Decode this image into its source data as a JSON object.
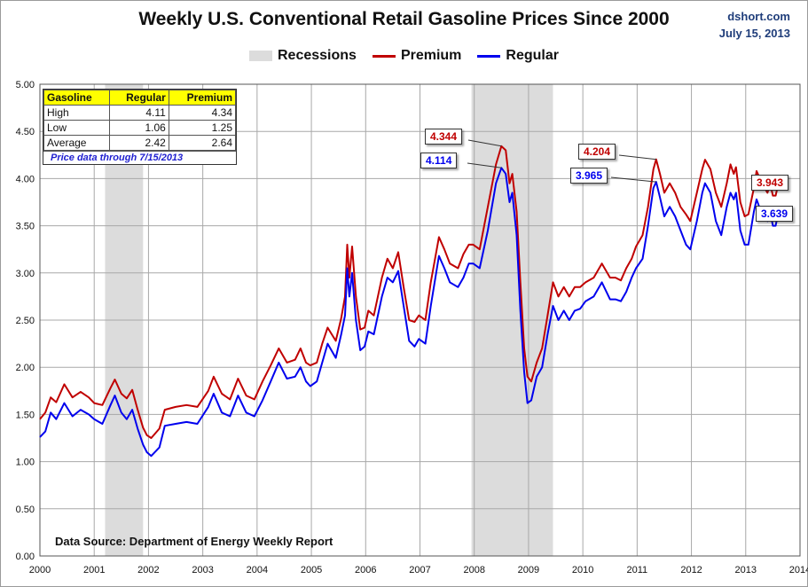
{
  "header": {
    "title": "Weekly U.S. Conventional Retail Gasoline Prices Since 2000",
    "site": "dshort.com",
    "date": "July 15, 2013"
  },
  "legend": {
    "recessions": "Recessions",
    "premium": "Premium",
    "regular": "Regular"
  },
  "colors": {
    "premium": "#c00000",
    "regular": "#0000ee",
    "recession": "#dcdcdc"
  },
  "stats_table": {
    "headers": [
      "Gasoline",
      "Regular",
      "Premium"
    ],
    "rows": [
      [
        "High",
        "4.11",
        "4.34"
      ],
      [
        "Low",
        "1.06",
        "1.25"
      ],
      [
        "Average",
        "2.42",
        "2.64"
      ]
    ],
    "note": "Price data through 7/15/2013"
  },
  "data_source": "Data Source: Department of Energy Weekly Report",
  "callouts": {
    "premium_peak_2008": "4.344",
    "regular_peak_2008": "4.114",
    "premium_peak_2011": "4.204",
    "regular_peak_2011": "3.965",
    "premium_latest": "3.943",
    "regular_latest": "3.639"
  },
  "chart_data": {
    "type": "line",
    "xlabel": "",
    "ylabel": "",
    "xlim": [
      2000,
      2014
    ],
    "ylim": [
      0,
      5
    ],
    "y_ticks": [
      "0.00",
      "0.50",
      "1.00",
      "1.50",
      "2.00",
      "2.50",
      "3.00",
      "3.50",
      "4.00",
      "4.50",
      "5.00"
    ],
    "x_ticks": [
      "2000",
      "2001",
      "2002",
      "2003",
      "2004",
      "2005",
      "2006",
      "2007",
      "2008",
      "2009",
      "2010",
      "2011",
      "2012",
      "2013",
      "2014"
    ],
    "grid": true,
    "recessions": [
      [
        2001.2,
        2001.9
      ],
      [
        2007.95,
        2009.45
      ]
    ],
    "series": [
      {
        "name": "Premium",
        "color": "#c00000",
        "points": [
          [
            2000.0,
            1.45
          ],
          [
            2000.1,
            1.52
          ],
          [
            2000.2,
            1.68
          ],
          [
            2000.3,
            1.63
          ],
          [
            2000.45,
            1.82
          ],
          [
            2000.6,
            1.68
          ],
          [
            2000.75,
            1.74
          ],
          [
            2000.9,
            1.68
          ],
          [
            2001.0,
            1.62
          ],
          [
            2001.15,
            1.6
          ],
          [
            2001.3,
            1.78
          ],
          [
            2001.38,
            1.87
          ],
          [
            2001.5,
            1.72
          ],
          [
            2001.6,
            1.67
          ],
          [
            2001.7,
            1.76
          ],
          [
            2001.8,
            1.55
          ],
          [
            2001.9,
            1.36
          ],
          [
            2001.97,
            1.28
          ],
          [
            2002.05,
            1.25
          ],
          [
            2002.2,
            1.35
          ],
          [
            2002.3,
            1.55
          ],
          [
            2002.5,
            1.58
          ],
          [
            2002.7,
            1.6
          ],
          [
            2002.9,
            1.58
          ],
          [
            2003.1,
            1.75
          ],
          [
            2003.2,
            1.9
          ],
          [
            2003.35,
            1.72
          ],
          [
            2003.5,
            1.66
          ],
          [
            2003.65,
            1.88
          ],
          [
            2003.8,
            1.7
          ],
          [
            2003.95,
            1.66
          ],
          [
            2004.1,
            1.85
          ],
          [
            2004.25,
            2.02
          ],
          [
            2004.4,
            2.2
          ],
          [
            2004.55,
            2.05
          ],
          [
            2004.7,
            2.08
          ],
          [
            2004.8,
            2.2
          ],
          [
            2004.9,
            2.05
          ],
          [
            2004.98,
            2.02
          ],
          [
            2005.1,
            2.05
          ],
          [
            2005.2,
            2.25
          ],
          [
            2005.3,
            2.42
          ],
          [
            2005.45,
            2.28
          ],
          [
            2005.55,
            2.52
          ],
          [
            2005.62,
            2.75
          ],
          [
            2005.66,
            3.3
          ],
          [
            2005.7,
            2.95
          ],
          [
            2005.75,
            3.28
          ],
          [
            2005.82,
            2.75
          ],
          [
            2005.9,
            2.4
          ],
          [
            2005.98,
            2.42
          ],
          [
            2006.05,
            2.6
          ],
          [
            2006.15,
            2.55
          ],
          [
            2006.3,
            2.95
          ],
          [
            2006.4,
            3.15
          ],
          [
            2006.5,
            3.05
          ],
          [
            2006.6,
            3.22
          ],
          [
            2006.7,
            2.85
          ],
          [
            2006.8,
            2.5
          ],
          [
            2006.9,
            2.48
          ],
          [
            2006.98,
            2.55
          ],
          [
            2007.1,
            2.5
          ],
          [
            2007.2,
            2.9
          ],
          [
            2007.35,
            3.38
          ],
          [
            2007.45,
            3.25
          ],
          [
            2007.55,
            3.1
          ],
          [
            2007.7,
            3.05
          ],
          [
            2007.8,
            3.2
          ],
          [
            2007.9,
            3.3
          ],
          [
            2007.98,
            3.3
          ],
          [
            2008.1,
            3.25
          ],
          [
            2008.25,
            3.7
          ],
          [
            2008.4,
            4.15
          ],
          [
            2008.5,
            4.344
          ],
          [
            2008.58,
            4.3
          ],
          [
            2008.65,
            3.95
          ],
          [
            2008.7,
            4.05
          ],
          [
            2008.78,
            3.65
          ],
          [
            2008.85,
            2.9
          ],
          [
            2008.92,
            2.2
          ],
          [
            2008.98,
            1.9
          ],
          [
            2009.05,
            1.85
          ],
          [
            2009.15,
            2.05
          ],
          [
            2009.25,
            2.2
          ],
          [
            2009.35,
            2.55
          ],
          [
            2009.45,
            2.9
          ],
          [
            2009.55,
            2.75
          ],
          [
            2009.65,
            2.85
          ],
          [
            2009.75,
            2.75
          ],
          [
            2009.85,
            2.85
          ],
          [
            2009.95,
            2.85
          ],
          [
            2010.05,
            2.9
          ],
          [
            2010.2,
            2.95
          ],
          [
            2010.35,
            3.1
          ],
          [
            2010.5,
            2.95
          ],
          [
            2010.6,
            2.95
          ],
          [
            2010.7,
            2.92
          ],
          [
            2010.8,
            3.05
          ],
          [
            2010.9,
            3.15
          ],
          [
            2010.98,
            3.28
          ],
          [
            2011.1,
            3.4
          ],
          [
            2011.2,
            3.7
          ],
          [
            2011.3,
            4.1
          ],
          [
            2011.35,
            4.204
          ],
          [
            2011.42,
            4.05
          ],
          [
            2011.5,
            3.85
          ],
          [
            2011.6,
            3.95
          ],
          [
            2011.7,
            3.85
          ],
          [
            2011.8,
            3.7
          ],
          [
            2011.9,
            3.62
          ],
          [
            2011.98,
            3.55
          ],
          [
            2012.1,
            3.85
          ],
          [
            2012.2,
            4.1
          ],
          [
            2012.25,
            4.2
          ],
          [
            2012.35,
            4.1
          ],
          [
            2012.45,
            3.85
          ],
          [
            2012.55,
            3.7
          ],
          [
            2012.65,
            3.95
          ],
          [
            2012.72,
            4.15
          ],
          [
            2012.78,
            4.05
          ],
          [
            2012.82,
            4.12
          ],
          [
            2012.9,
            3.75
          ],
          [
            2012.98,
            3.6
          ],
          [
            2013.05,
            3.62
          ],
          [
            2013.15,
            3.9
          ],
          [
            2013.2,
            4.08
          ],
          [
            2013.3,
            3.95
          ],
          [
            2013.4,
            3.85
          ],
          [
            2013.45,
            3.95
          ],
          [
            2013.5,
            3.82
          ],
          [
            2013.55,
            3.82
          ],
          [
            2013.6,
            3.943
          ]
        ]
      },
      {
        "name": "Regular",
        "color": "#0000ee",
        "points": [
          [
            2000.0,
            1.26
          ],
          [
            2000.1,
            1.32
          ],
          [
            2000.2,
            1.52
          ],
          [
            2000.3,
            1.45
          ],
          [
            2000.45,
            1.62
          ],
          [
            2000.6,
            1.48
          ],
          [
            2000.75,
            1.55
          ],
          [
            2000.9,
            1.5
          ],
          [
            2001.0,
            1.45
          ],
          [
            2001.15,
            1.4
          ],
          [
            2001.3,
            1.6
          ],
          [
            2001.38,
            1.7
          ],
          [
            2001.5,
            1.52
          ],
          [
            2001.6,
            1.45
          ],
          [
            2001.7,
            1.55
          ],
          [
            2001.8,
            1.35
          ],
          [
            2001.9,
            1.18
          ],
          [
            2001.97,
            1.1
          ],
          [
            2002.05,
            1.06
          ],
          [
            2002.2,
            1.15
          ],
          [
            2002.3,
            1.38
          ],
          [
            2002.5,
            1.4
          ],
          [
            2002.7,
            1.42
          ],
          [
            2002.9,
            1.4
          ],
          [
            2003.1,
            1.58
          ],
          [
            2003.2,
            1.72
          ],
          [
            2003.35,
            1.52
          ],
          [
            2003.5,
            1.48
          ],
          [
            2003.65,
            1.7
          ],
          [
            2003.8,
            1.52
          ],
          [
            2003.95,
            1.48
          ],
          [
            2004.1,
            1.65
          ],
          [
            2004.25,
            1.85
          ],
          [
            2004.4,
            2.05
          ],
          [
            2004.55,
            1.88
          ],
          [
            2004.7,
            1.9
          ],
          [
            2004.8,
            2.0
          ],
          [
            2004.9,
            1.85
          ],
          [
            2004.98,
            1.8
          ],
          [
            2005.1,
            1.85
          ],
          [
            2005.2,
            2.05
          ],
          [
            2005.3,
            2.25
          ],
          [
            2005.45,
            2.1
          ],
          [
            2005.55,
            2.35
          ],
          [
            2005.62,
            2.55
          ],
          [
            2005.66,
            3.05
          ],
          [
            2005.7,
            2.75
          ],
          [
            2005.75,
            3.0
          ],
          [
            2005.82,
            2.5
          ],
          [
            2005.9,
            2.18
          ],
          [
            2005.98,
            2.22
          ],
          [
            2006.05,
            2.38
          ],
          [
            2006.15,
            2.35
          ],
          [
            2006.3,
            2.75
          ],
          [
            2006.4,
            2.95
          ],
          [
            2006.5,
            2.9
          ],
          [
            2006.6,
            3.02
          ],
          [
            2006.7,
            2.65
          ],
          [
            2006.8,
            2.28
          ],
          [
            2006.9,
            2.22
          ],
          [
            2006.98,
            2.3
          ],
          [
            2007.1,
            2.25
          ],
          [
            2007.2,
            2.65
          ],
          [
            2007.35,
            3.18
          ],
          [
            2007.45,
            3.05
          ],
          [
            2007.55,
            2.9
          ],
          [
            2007.7,
            2.85
          ],
          [
            2007.8,
            2.95
          ],
          [
            2007.9,
            3.1
          ],
          [
            2007.98,
            3.1
          ],
          [
            2008.1,
            3.05
          ],
          [
            2008.25,
            3.45
          ],
          [
            2008.4,
            3.95
          ],
          [
            2008.5,
            4.114
          ],
          [
            2008.58,
            4.05
          ],
          [
            2008.65,
            3.75
          ],
          [
            2008.7,
            3.85
          ],
          [
            2008.78,
            3.4
          ],
          [
            2008.85,
            2.6
          ],
          [
            2008.92,
            1.95
          ],
          [
            2008.98,
            1.62
          ],
          [
            2009.05,
            1.65
          ],
          [
            2009.15,
            1.9
          ],
          [
            2009.25,
            2.0
          ],
          [
            2009.35,
            2.35
          ],
          [
            2009.45,
            2.65
          ],
          [
            2009.55,
            2.5
          ],
          [
            2009.65,
            2.6
          ],
          [
            2009.75,
            2.5
          ],
          [
            2009.85,
            2.6
          ],
          [
            2009.95,
            2.62
          ],
          [
            2010.05,
            2.7
          ],
          [
            2010.2,
            2.75
          ],
          [
            2010.35,
            2.9
          ],
          [
            2010.5,
            2.72
          ],
          [
            2010.6,
            2.72
          ],
          [
            2010.7,
            2.7
          ],
          [
            2010.8,
            2.8
          ],
          [
            2010.9,
            2.95
          ],
          [
            2010.98,
            3.05
          ],
          [
            2011.1,
            3.15
          ],
          [
            2011.2,
            3.5
          ],
          [
            2011.3,
            3.9
          ],
          [
            2011.35,
            3.965
          ],
          [
            2011.42,
            3.8
          ],
          [
            2011.5,
            3.6
          ],
          [
            2011.6,
            3.7
          ],
          [
            2011.7,
            3.6
          ],
          [
            2011.8,
            3.45
          ],
          [
            2011.9,
            3.3
          ],
          [
            2011.98,
            3.25
          ],
          [
            2012.1,
            3.55
          ],
          [
            2012.2,
            3.85
          ],
          [
            2012.25,
            3.95
          ],
          [
            2012.35,
            3.85
          ],
          [
            2012.45,
            3.55
          ],
          [
            2012.55,
            3.4
          ],
          [
            2012.65,
            3.7
          ],
          [
            2012.72,
            3.85
          ],
          [
            2012.78,
            3.78
          ],
          [
            2012.82,
            3.85
          ],
          [
            2012.9,
            3.45
          ],
          [
            2012.98,
            3.3
          ],
          [
            2013.05,
            3.3
          ],
          [
            2013.15,
            3.65
          ],
          [
            2013.2,
            3.78
          ],
          [
            2013.3,
            3.62
          ],
          [
            2013.4,
            3.55
          ],
          [
            2013.45,
            3.65
          ],
          [
            2013.5,
            3.5
          ],
          [
            2013.55,
            3.5
          ],
          [
            2013.6,
            3.639
          ]
        ]
      }
    ]
  }
}
